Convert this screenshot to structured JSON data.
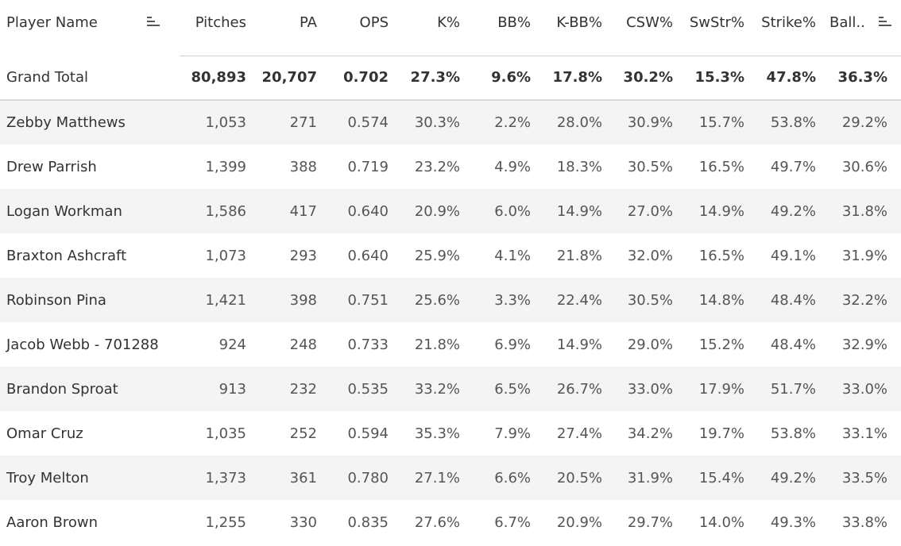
{
  "columns": [
    "Player Name",
    "Pitches",
    "PA",
    "OPS",
    "K%",
    "BB%",
    "K-BB%",
    "CSW%",
    "SwStr%",
    "Strike%",
    "Ball.."
  ],
  "grand_total": {
    "name": "Grand Total",
    "values": [
      "80,893",
      "20,707",
      "0.702",
      "27.3%",
      "9.6%",
      "17.8%",
      "30.2%",
      "15.3%",
      "47.8%",
      "36.3%"
    ]
  },
  "rows": [
    {
      "name": "Zebby Matthews",
      "values": [
        "1,053",
        "271",
        "0.574",
        "30.3%",
        "2.2%",
        "28.0%",
        "30.9%",
        "15.7%",
        "53.8%",
        "29.2%"
      ]
    },
    {
      "name": "Drew Parrish",
      "values": [
        "1,399",
        "388",
        "0.719",
        "23.2%",
        "4.9%",
        "18.3%",
        "30.5%",
        "16.5%",
        "49.7%",
        "30.6%"
      ]
    },
    {
      "name": "Logan Workman",
      "values": [
        "1,586",
        "417",
        "0.640",
        "20.9%",
        "6.0%",
        "14.9%",
        "27.0%",
        "14.9%",
        "49.2%",
        "31.8%"
      ]
    },
    {
      "name": "Braxton Ashcraft",
      "values": [
        "1,073",
        "293",
        "0.640",
        "25.9%",
        "4.1%",
        "21.8%",
        "32.0%",
        "16.5%",
        "49.1%",
        "31.9%"
      ]
    },
    {
      "name": "Robinson Pina",
      "values": [
        "1,421",
        "398",
        "0.751",
        "25.6%",
        "3.3%",
        "22.4%",
        "30.5%",
        "14.8%",
        "48.4%",
        "32.2%"
      ]
    },
    {
      "name": "Jacob Webb - 701288",
      "values": [
        "924",
        "248",
        "0.733",
        "21.8%",
        "6.9%",
        "14.9%",
        "29.0%",
        "15.2%",
        "48.4%",
        "32.9%"
      ]
    },
    {
      "name": "Brandon Sproat",
      "values": [
        "913",
        "232",
        "0.535",
        "33.2%",
        "6.5%",
        "26.7%",
        "33.0%",
        "17.9%",
        "51.7%",
        "33.0%"
      ]
    },
    {
      "name": "Omar Cruz",
      "values": [
        "1,035",
        "252",
        "0.594",
        "35.3%",
        "7.9%",
        "27.4%",
        "34.2%",
        "19.7%",
        "53.8%",
        "33.1%"
      ]
    },
    {
      "name": "Troy Melton",
      "values": [
        "1,373",
        "361",
        "0.780",
        "27.1%",
        "6.6%",
        "20.5%",
        "31.9%",
        "15.4%",
        "49.2%",
        "33.5%"
      ]
    },
    {
      "name": "Aaron Brown",
      "values": [
        "1,255",
        "330",
        "0.835",
        "27.6%",
        "6.7%",
        "20.9%",
        "29.7%",
        "14.0%",
        "49.3%",
        "33.8%"
      ]
    }
  ]
}
